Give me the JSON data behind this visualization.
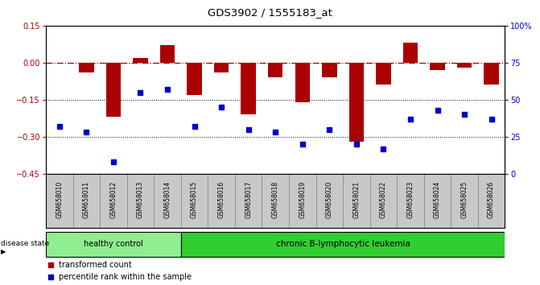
{
  "title": "GDS3902 / 1555183_at",
  "samples": [
    "GSM658010",
    "GSM658011",
    "GSM658012",
    "GSM658013",
    "GSM658014",
    "GSM658015",
    "GSM658016",
    "GSM658017",
    "GSM658018",
    "GSM658019",
    "GSM658020",
    "GSM658021",
    "GSM658022",
    "GSM658023",
    "GSM658024",
    "GSM658025",
    "GSM658026"
  ],
  "bar_values": [
    0.0,
    -0.04,
    -0.22,
    0.02,
    0.07,
    -0.13,
    -0.04,
    -0.21,
    -0.06,
    -0.16,
    -0.06,
    -0.32,
    -0.09,
    0.08,
    -0.03,
    -0.02,
    -0.09
  ],
  "blue_values": [
    32,
    28,
    8,
    55,
    57,
    32,
    45,
    30,
    28,
    20,
    30,
    20,
    17,
    37,
    43,
    40,
    37
  ],
  "ylim_left": [
    -0.45,
    0.15
  ],
  "ylim_right": [
    0,
    100
  ],
  "yticks_left": [
    0.15,
    0.0,
    -0.15,
    -0.3,
    -0.45
  ],
  "yticks_right": [
    100,
    75,
    50,
    25,
    0
  ],
  "ytick_right_labels": [
    "100%",
    "75",
    "50",
    "25",
    "0"
  ],
  "bar_color": "#AA0000",
  "blue_color": "#0000CC",
  "dotted_lines": [
    -0.15,
    -0.3
  ],
  "healthy_count": 5,
  "healthy_label": "healthy control",
  "leukemia_label": "chronic B-lymphocytic leukemia",
  "disease_state_label": "disease state",
  "legend_bar_label": "transformed count",
  "legend_blue_label": "percentile rank within the sample",
  "healthy_color": "#90EE90",
  "leukemia_color": "#32CD32",
  "label_area_color": "#C8C8C8",
  "background_color": "#FFFFFF"
}
